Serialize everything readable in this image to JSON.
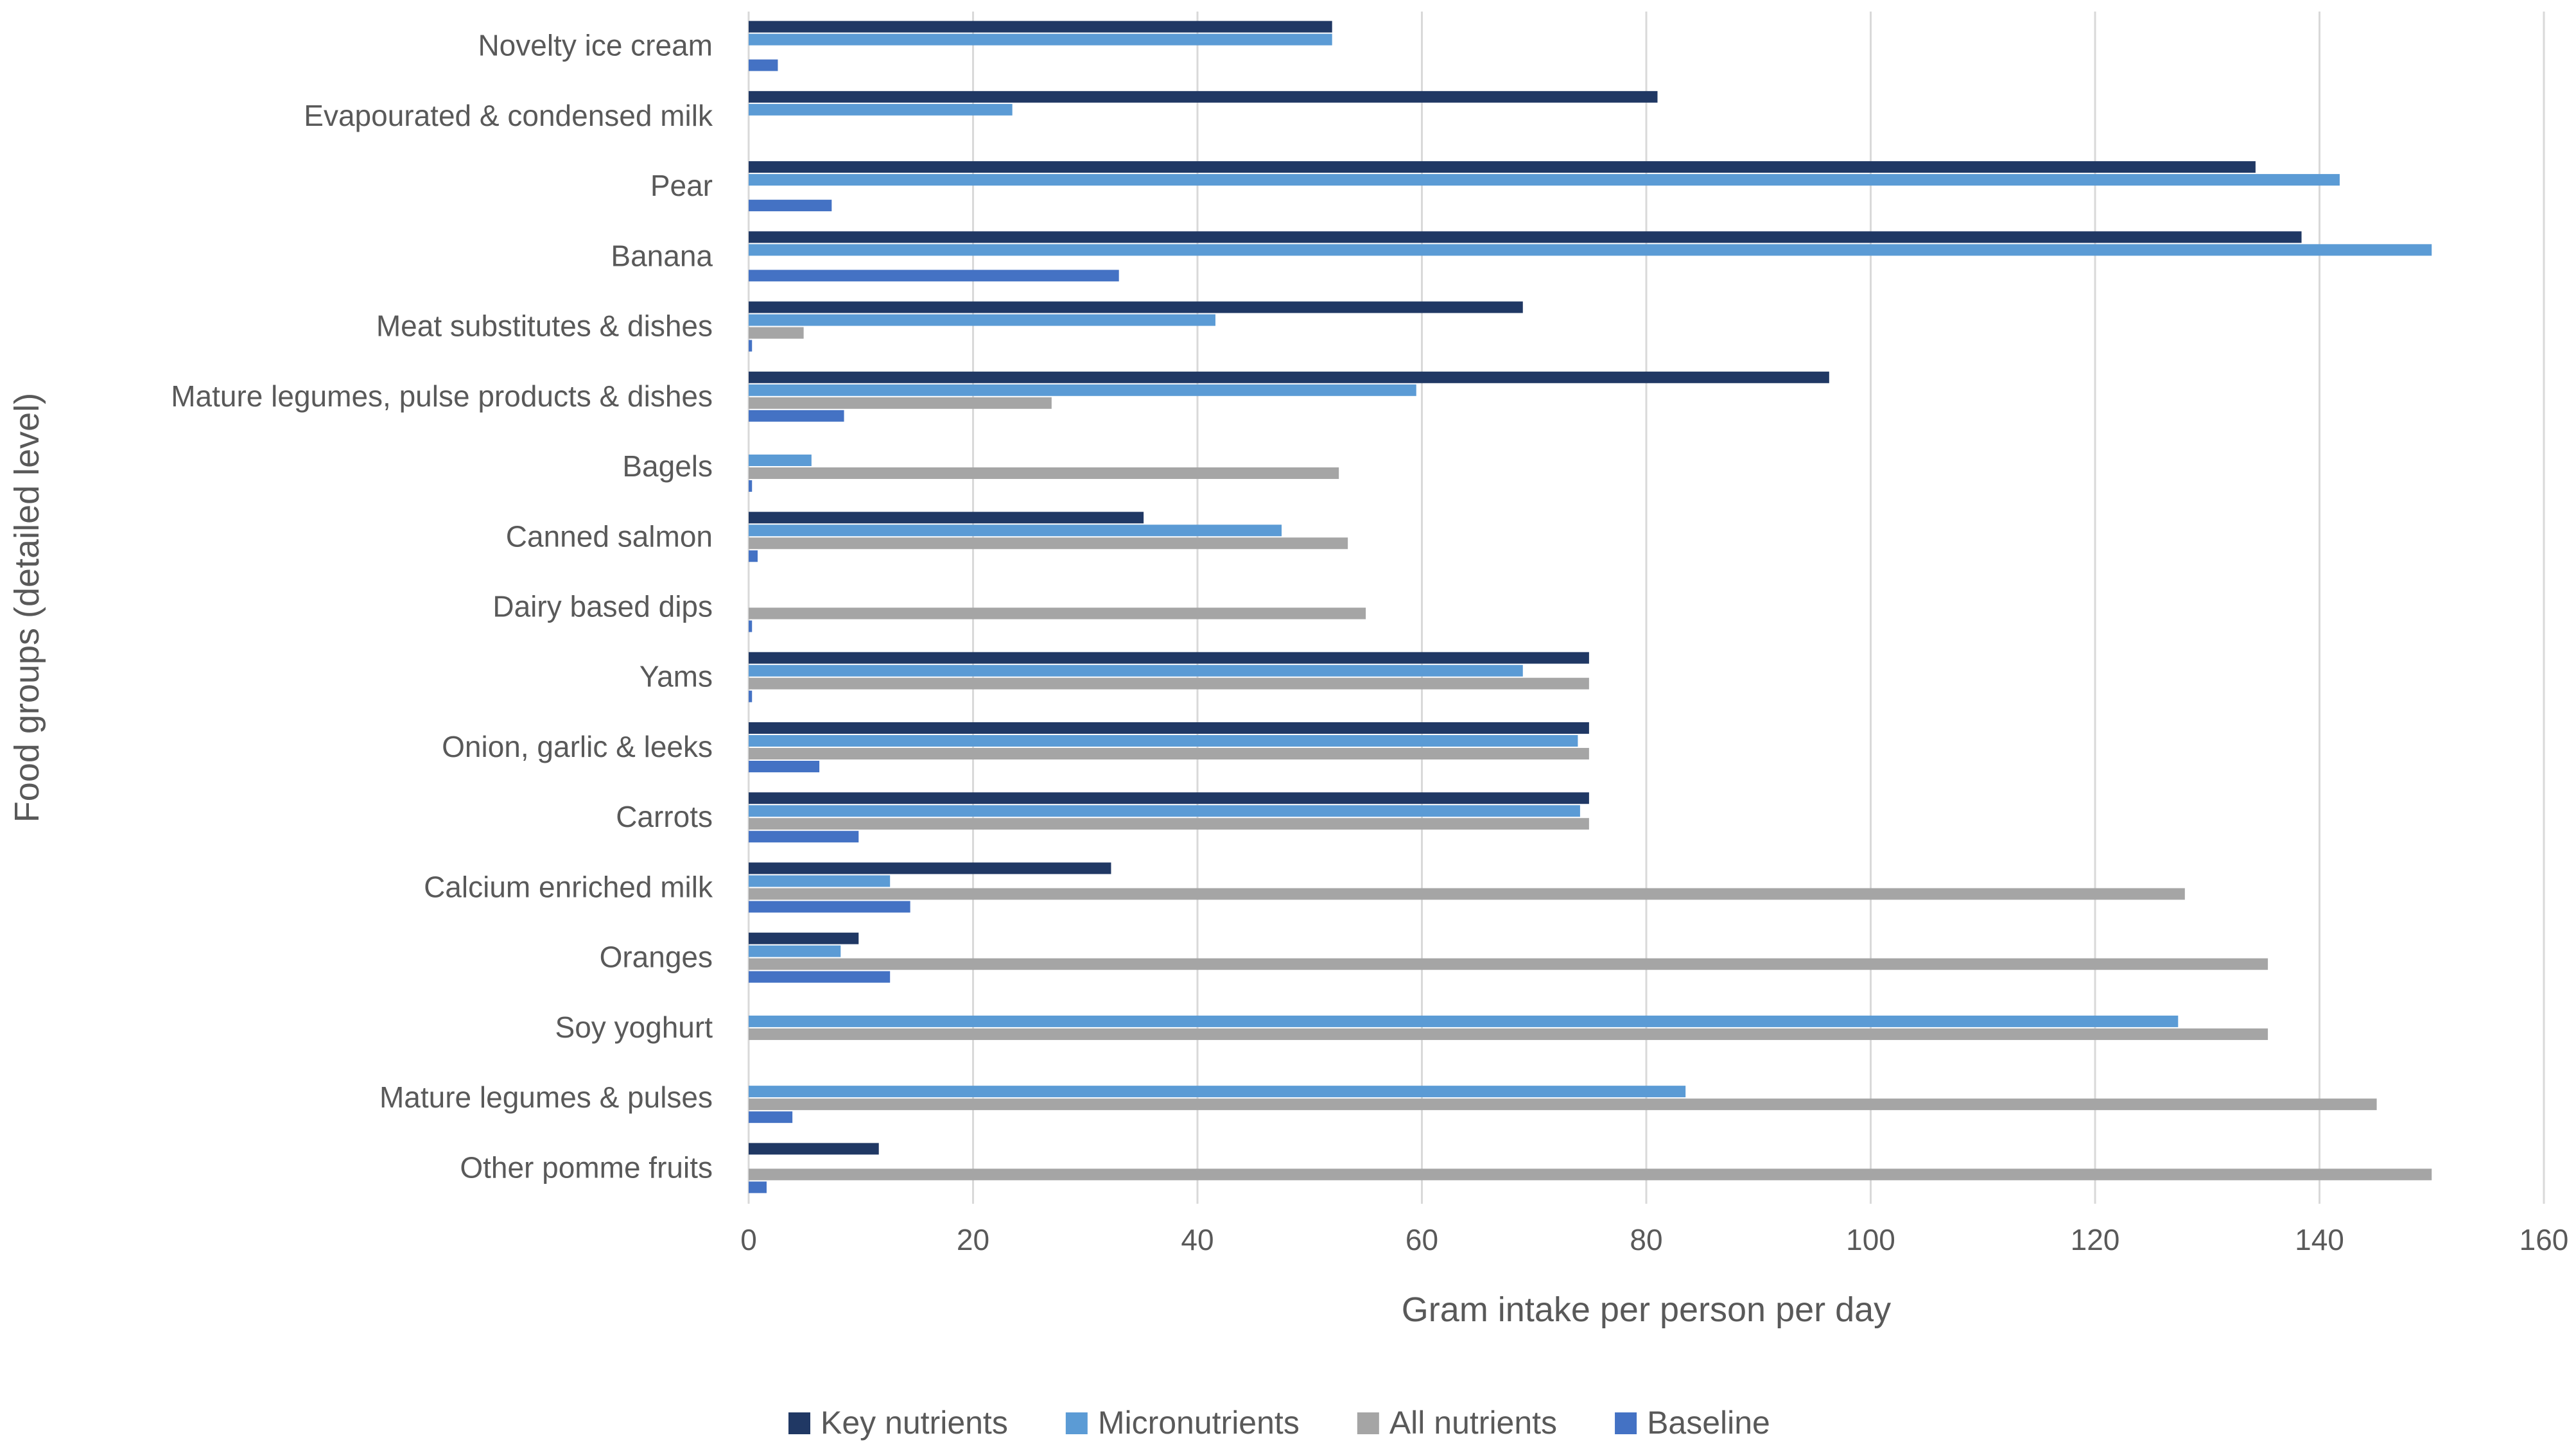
{
  "chart_data": {
    "type": "bar",
    "orientation": "horizontal",
    "title": "",
    "xlabel": "Gram intake per person per day",
    "ylabel": "Food groups (detailed level)",
    "xlim": [
      0,
      160
    ],
    "xticks": [
      0,
      20,
      40,
      60,
      80,
      100,
      120,
      140,
      160
    ],
    "grid": true,
    "legend_position": "bottom",
    "categories": [
      "Novelty ice cream",
      "Evapourated & condensed milk",
      "Pear",
      "Banana",
      "Meat substitutes & dishes",
      "Mature legumes, pulse products & dishes",
      "Bagels",
      "Canned salmon",
      "Dairy based dips",
      "Yams",
      "Onion, garlic & leeks",
      "Carrots",
      "Calcium enriched milk",
      "Oranges",
      "Soy yoghurt",
      "Mature legumes & pulses",
      "Other pomme fruits"
    ],
    "series": [
      {
        "name": "Key nutrients",
        "color": "#203864",
        "values": [
          52,
          81,
          134.3,
          138.4,
          69,
          96.3,
          0,
          35.2,
          0,
          74.9,
          74.9,
          74.9,
          32.3,
          9.8,
          0,
          0,
          11.6
        ]
      },
      {
        "name": "Micronutrients",
        "color": "#5b9bd5",
        "values": [
          52,
          23.5,
          141.8,
          150,
          41.6,
          59.5,
          5.6,
          47.5,
          0,
          69,
          73.9,
          74.1,
          12.6,
          8.2,
          127.4,
          83.5,
          0
        ]
      },
      {
        "name": "All nutrients",
        "color": "#a5a5a5",
        "values": [
          0,
          0,
          0,
          0,
          4.9,
          27,
          52.6,
          53.4,
          55,
          74.9,
          74.9,
          74.9,
          128,
          135.4,
          135.4,
          145.1,
          150
        ]
      },
      {
        "name": "Baseline",
        "color": "#4472c4",
        "values": [
          2.6,
          0,
          7.4,
          33,
          0.3,
          8.5,
          0.3,
          0.8,
          0.3,
          0.3,
          6.3,
          9.8,
          14.4,
          12.6,
          0,
          3.9,
          1.6
        ]
      }
    ]
  }
}
